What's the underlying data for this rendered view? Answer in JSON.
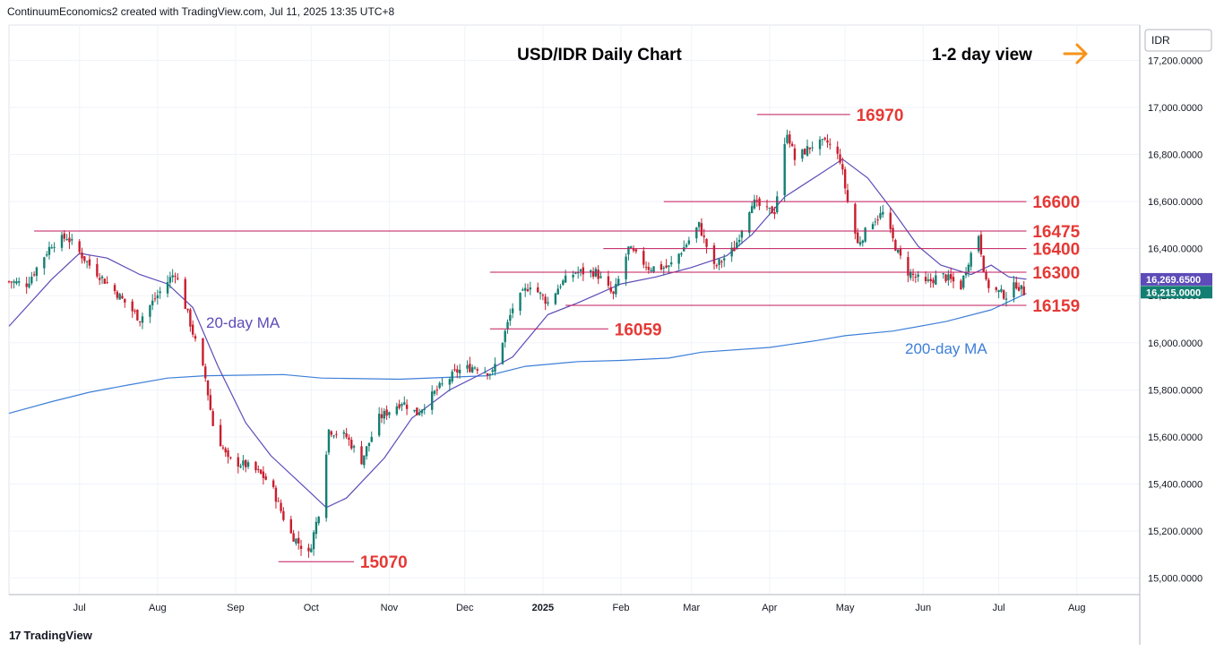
{
  "header": {
    "attribution": "ContinuumEconomics2 created with TradingView.com, Jul 11, 2025 13:35 UTC+8"
  },
  "footer": {
    "brand": "TradingView",
    "logo_icon": "tradingview-logo-icon"
  },
  "chart_data": {
    "type": "candlestick",
    "title": "USD/IDR Daily Chart",
    "view_label": "1-2 day view",
    "view_arrow_icon": "arrow-right-icon",
    "view_arrow_color": "#f7931a",
    "currency": "IDR",
    "y_range": [
      14930,
      17350
    ],
    "y_ticks": [
      "17,200.0000",
      "17,000.0000",
      "16,800.0000",
      "16,600.0000",
      "16,400.0000",
      "16,200.0000",
      "16,000.0000",
      "15,800.0000",
      "15,600.0000",
      "15,400.0000",
      "15,200.0000",
      "15,000.0000"
    ],
    "y_tick_values": [
      17200,
      17000,
      16800,
      16600,
      16400,
      16200,
      16000,
      15800,
      15600,
      15400,
      15200,
      15000
    ],
    "x_range": [
      "2024-06-03",
      "2025-08-26"
    ],
    "x_ticks": [
      {
        "label": "Jul",
        "date": "2024-07-01",
        "bold": false
      },
      {
        "label": "Aug",
        "date": "2024-08-01",
        "bold": false
      },
      {
        "label": "Sep",
        "date": "2024-09-01",
        "bold": false
      },
      {
        "label": "Oct",
        "date": "2024-10-01",
        "bold": false
      },
      {
        "label": "Nov",
        "date": "2024-11-01",
        "bold": false
      },
      {
        "label": "Dec",
        "date": "2024-12-01",
        "bold": false
      },
      {
        "label": "2025",
        "date": "2025-01-01",
        "bold": true
      },
      {
        "label": "Feb",
        "date": "2025-02-01",
        "bold": false
      },
      {
        "label": "Mar",
        "date": "2025-03-01",
        "bold": false
      },
      {
        "label": "Apr",
        "date": "2025-04-01",
        "bold": false
      },
      {
        "label": "May",
        "date": "2025-05-01",
        "bold": false
      },
      {
        "label": "Jun",
        "date": "2025-06-01",
        "bold": false
      },
      {
        "label": "Jul",
        "date": "2025-07-01",
        "bold": false
      },
      {
        "label": "Aug",
        "date": "2025-08-01",
        "bold": false
      }
    ],
    "levels": [
      {
        "label": "16970",
        "value": 16970,
        "from": "2025-03-27",
        "to": "2025-05-03",
        "label_date": "2025-05-04"
      },
      {
        "label": "16600",
        "value": 16600,
        "from": "2025-02-18",
        "to": "2025-07-12",
        "label_date": "2025-07-13"
      },
      {
        "label": "16475",
        "value": 16475,
        "from": "2024-06-13",
        "to": "2025-07-12",
        "label_date": "2025-07-13"
      },
      {
        "label": "16400",
        "value": 16400,
        "from": "2025-01-25",
        "to": "2025-07-12",
        "label_date": "2025-07-13"
      },
      {
        "label": "16300",
        "value": 16300,
        "from": "2024-12-11",
        "to": "2025-07-12",
        "label_date": "2025-07-13"
      },
      {
        "label": "16159",
        "value": 16159,
        "from": "2025-01-10",
        "to": "2025-07-12",
        "label_date": "2025-07-13"
      },
      {
        "label": "16059",
        "value": 16059,
        "from": "2024-12-11",
        "to": "2025-01-27",
        "label_date": "2025-01-28"
      },
      {
        "label": "15070",
        "value": 15070,
        "from": "2024-09-18",
        "to": "2024-10-18",
        "label_date": "2024-10-19"
      }
    ],
    "level_color": "#c2185b",
    "level_label_color": "#e53935",
    "ma20": {
      "label": "20-day MA",
      "color": "#5d4bb8",
      "points": [
        [
          "2024-06-03",
          16070
        ],
        [
          "2024-06-20",
          16270
        ],
        [
          "2024-07-01",
          16380
        ],
        [
          "2024-07-12",
          16360
        ],
        [
          "2024-07-25",
          16290
        ],
        [
          "2024-08-05",
          16250
        ],
        [
          "2024-08-15",
          16150
        ],
        [
          "2024-08-25",
          15900
        ],
        [
          "2024-09-05",
          15660
        ],
        [
          "2024-09-15",
          15520
        ],
        [
          "2024-09-28",
          15390
        ],
        [
          "2024-10-07",
          15300
        ],
        [
          "2024-10-15",
          15340
        ],
        [
          "2024-10-30",
          15510
        ],
        [
          "2024-11-10",
          15680
        ],
        [
          "2024-11-25",
          15800
        ],
        [
          "2024-12-08",
          15870
        ],
        [
          "2024-12-20",
          15940
        ],
        [
          "2025-01-03",
          16120
        ],
        [
          "2025-01-15",
          16170
        ],
        [
          "2025-02-01",
          16250
        ],
        [
          "2025-02-15",
          16280
        ],
        [
          "2025-03-01",
          16320
        ],
        [
          "2025-03-15",
          16370
        ],
        [
          "2025-03-25",
          16460
        ],
        [
          "2025-04-07",
          16620
        ],
        [
          "2025-04-20",
          16710
        ],
        [
          "2025-04-30",
          16780
        ],
        [
          "2025-05-10",
          16700
        ],
        [
          "2025-05-20",
          16560
        ],
        [
          "2025-05-30",
          16410
        ],
        [
          "2025-06-08",
          16330
        ],
        [
          "2025-06-20",
          16290
        ],
        [
          "2025-06-28",
          16330
        ],
        [
          "2025-07-05",
          16280
        ],
        [
          "2025-07-12",
          16270
        ]
      ]
    },
    "ma200": {
      "label": "200-day MA",
      "color": "#3d7fd8",
      "points": [
        [
          "2024-06-03",
          15700
        ],
        [
          "2024-06-20",
          15750
        ],
        [
          "2024-07-05",
          15790
        ],
        [
          "2024-07-20",
          15820
        ],
        [
          "2024-08-05",
          15850
        ],
        [
          "2024-08-20",
          15860
        ],
        [
          "2024-09-20",
          15865
        ],
        [
          "2024-10-05",
          15850
        ],
        [
          "2024-11-05",
          15845
        ],
        [
          "2024-12-10",
          15860
        ],
        [
          "2024-12-25",
          15900
        ],
        [
          "2025-01-15",
          15920
        ],
        [
          "2025-02-01",
          15925
        ],
        [
          "2025-02-20",
          15935
        ],
        [
          "2025-03-05",
          15960
        ],
        [
          "2025-04-01",
          15980
        ],
        [
          "2025-04-20",
          16010
        ],
        [
          "2025-05-01",
          16030
        ],
        [
          "2025-05-20",
          16050
        ],
        [
          "2025-06-10",
          16090
        ],
        [
          "2025-06-28",
          16140
        ],
        [
          "2025-07-12",
          16210
        ]
      ]
    },
    "current_price": {
      "value": 16269.65,
      "label": "16,269.6500",
      "color": "#5d4bb8"
    },
    "current_close": {
      "value": 16215.0,
      "label": "16,215.0000",
      "color": "#137f72"
    },
    "candle_up_color": "#137f72",
    "candle_down_color": "#c81e2e",
    "path_anchors": [
      [
        "2024-06-03",
        16260
      ],
      [
        "2024-06-10",
        16250
      ],
      [
        "2024-06-20",
        16420
      ],
      [
        "2024-06-26",
        16450
      ],
      [
        "2024-07-05",
        16330
      ],
      [
        "2024-07-15",
        16220
      ],
      [
        "2024-07-25",
        16100
      ],
      [
        "2024-08-05",
        16260
      ],
      [
        "2024-08-08",
        16300
      ],
      [
        "2024-08-13",
        16120
      ],
      [
        "2024-08-20",
        15850
      ],
      [
        "2024-08-23",
        15650
      ],
      [
        "2024-08-29",
        15500
      ],
      [
        "2024-09-05",
        15480
      ],
      [
        "2024-09-10",
        15450
      ],
      [
        "2024-09-15",
        15400
      ],
      [
        "2024-09-22",
        15200
      ],
      [
        "2024-09-30",
        15100
      ],
      [
        "2024-10-04",
        15280
      ],
      [
        "2024-10-08",
        15630
      ],
      [
        "2024-10-15",
        15600
      ],
      [
        "2024-10-21",
        15500
      ],
      [
        "2024-10-28",
        15680
      ],
      [
        "2024-11-06",
        15750
      ],
      [
        "2024-11-12",
        15700
      ],
      [
        "2024-11-20",
        15800
      ],
      [
        "2024-11-28",
        15880
      ],
      [
        "2024-12-05",
        15900
      ],
      [
        "2024-12-12",
        15870
      ],
      [
        "2024-12-20",
        16150
      ],
      [
        "2024-12-27",
        16250
      ],
      [
        "2025-01-03",
        16170
      ],
      [
        "2025-01-08",
        16250
      ],
      [
        "2025-01-14",
        16300
      ],
      [
        "2025-01-22",
        16300
      ],
      [
        "2025-01-29",
        16200
      ],
      [
        "2025-02-04",
        16400
      ],
      [
        "2025-02-12",
        16320
      ],
      [
        "2025-02-20",
        16320
      ],
      [
        "2025-02-27",
        16420
      ],
      [
        "2025-03-04",
        16500
      ],
      [
        "2025-03-10",
        16320
      ],
      [
        "2025-03-18",
        16400
      ],
      [
        "2025-03-25",
        16600
      ],
      [
        "2025-03-31",
        16560
      ],
      [
        "2025-04-03",
        16560
      ],
      [
        "2025-04-08",
        16900
      ],
      [
        "2025-04-11",
        16780
      ],
      [
        "2025-04-18",
        16840
      ],
      [
        "2025-04-24",
        16850
      ],
      [
        "2025-04-29",
        16780
      ],
      [
        "2025-05-02",
        16600
      ],
      [
        "2025-05-06",
        16420
      ],
      [
        "2025-05-12",
        16520
      ],
      [
        "2025-05-16",
        16550
      ],
      [
        "2025-05-22",
        16380
      ],
      [
        "2025-05-26",
        16300
      ],
      [
        "2025-06-02",
        16250
      ],
      [
        "2025-06-08",
        16290
      ],
      [
        "2025-06-16",
        16240
      ],
      [
        "2025-06-19",
        16350
      ],
      [
        "2025-06-23",
        16460
      ],
      [
        "2025-06-26",
        16250
      ],
      [
        "2025-06-30",
        16220
      ],
      [
        "2025-07-04",
        16200
      ],
      [
        "2025-07-08",
        16250
      ],
      [
        "2025-07-11",
        16215
      ]
    ]
  }
}
